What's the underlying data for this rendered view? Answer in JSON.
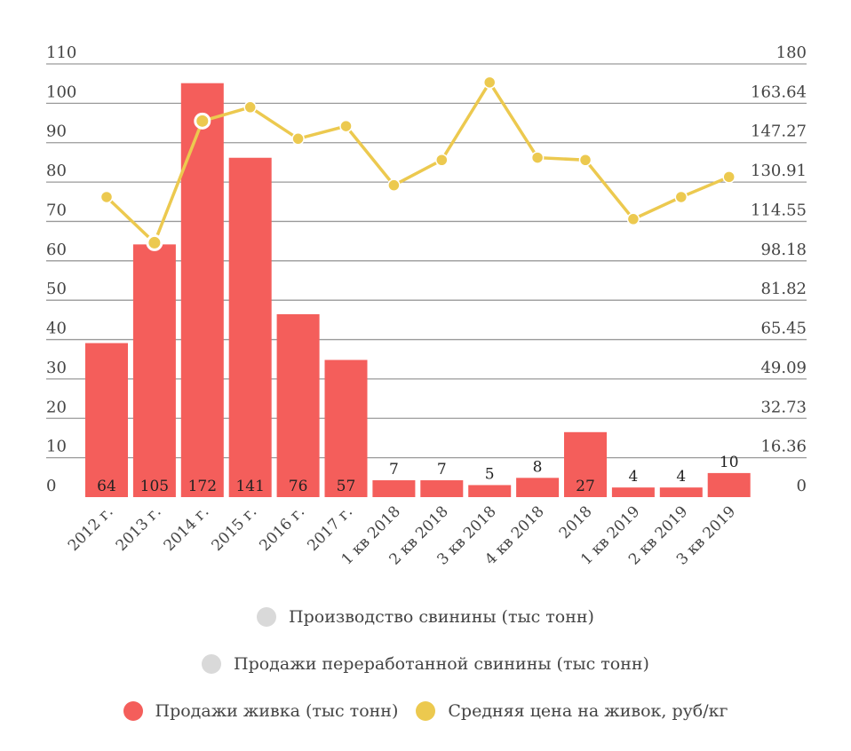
{
  "chart_data": {
    "type": "bar+line",
    "categories": [
      "2012 г.",
      "2013 г.",
      "2014 г.",
      "2015 г.",
      "2016 г.",
      "2017 г.",
      "1 кв 2018",
      "2 кв 2018",
      "3 кв 2018",
      "4 кв 2018",
      "2018",
      "1 кв 2019",
      "2 кв 2019",
      "3 кв 2019"
    ],
    "series": [
      {
        "name": "Продажи живка (тыс тонн)",
        "type": "bar",
        "axis": "right",
        "color": "#f45e5b",
        "values": [
          64,
          105,
          172,
          141,
          76,
          57,
          7,
          7,
          5,
          8,
          27,
          4,
          4,
          10
        ],
        "data_labels": [
          "64",
          "105",
          "172",
          "141",
          "76",
          "57",
          "7",
          "7",
          "5",
          "8",
          "27",
          "4",
          "4",
          "10"
        ]
      },
      {
        "name": "Средняя цена на живок, руб/кг",
        "type": "line",
        "axis": "left",
        "color": "#ecc94f",
        "values": [
          76.2,
          64.6,
          95.5,
          99,
          91,
          94.2,
          79.2,
          85.6,
          105.3,
          86.2,
          85.6,
          70.6,
          76.2,
          81.3
        ],
        "highlighted": [
          1,
          2
        ]
      }
    ],
    "left_axis": {
      "ylim": [
        0,
        110
      ],
      "ticks": [
        "0",
        "10",
        "20",
        "30",
        "40",
        "50",
        "60",
        "70",
        "80",
        "90",
        "100",
        "110"
      ]
    },
    "right_axis": {
      "ylim": [
        0,
        180
      ],
      "ticks": [
        "0",
        "16.36",
        "32.73",
        "49.09",
        "65.45",
        "81.82",
        "98.18",
        "114.55",
        "130.91",
        "147.27",
        "163.64",
        "180"
      ]
    },
    "grid": true,
    "legend_position": "bottom",
    "legend": [
      {
        "label": "Производство свинины (тыс тонн)",
        "color": "#d9d9d9"
      },
      {
        "label": "Продажи переработанной свинины (тыс тонн)",
        "color": "#d9d9d9"
      },
      {
        "label": "Продажи живка (тыс тонн)",
        "color": "#f45e5b"
      },
      {
        "label": "Средняя цена на живок, руб/кг",
        "color": "#ecc94f"
      }
    ]
  }
}
